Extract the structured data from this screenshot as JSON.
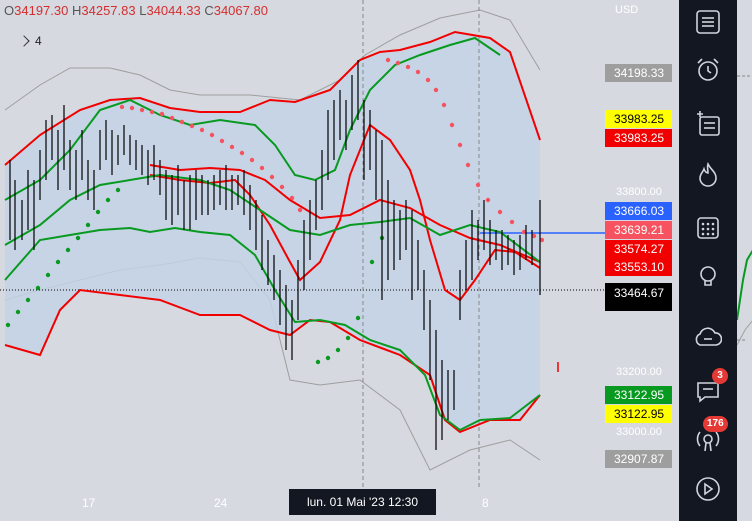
{
  "ohlc": {
    "o_key": "O",
    "o": "34197.30",
    "h_key": "H",
    "h": "34257.83",
    "l_key": "L",
    "l": "34044.33",
    "c_key": "C",
    "c": "34067.80"
  },
  "indicator_legend": {
    "count": "4"
  },
  "price_axis": {
    "currency": "USD",
    "ticks": [
      "33800.00",
      "33200.00",
      "33000.00"
    ],
    "tags": [
      {
        "value": "34198.33",
        "bg": "#9e9e9e",
        "fg": "#ffffff"
      },
      {
        "value": "33983.25",
        "bg": "#ffff00",
        "fg": "#000000"
      },
      {
        "value": "33983.25",
        "bg": "#f20000",
        "fg": "#ffffff"
      },
      {
        "value": "33666.03",
        "bg": "#2962ff",
        "fg": "#ffffff"
      },
      {
        "value": "33639.21",
        "bg": "#f7525f",
        "fg": "#ffffff"
      },
      {
        "value": "33574.27",
        "bg": "#f20000",
        "fg": "#ffffff"
      },
      {
        "value": "33553.10",
        "bg": "#f20000",
        "fg": "#ffffff"
      },
      {
        "value": "33464.67",
        "bg": "#000000",
        "fg": "#ffffff"
      },
      {
        "value": "33122.95",
        "bg": "#089a20",
        "fg": "#ffffff"
      },
      {
        "value": "33122.95",
        "bg": "#ffff00",
        "fg": "#000000"
      },
      {
        "value": "32907.87",
        "bg": "#9e9e9e",
        "fg": "#ffffff"
      }
    ]
  },
  "time_axis": {
    "labels": [
      "17",
      "24",
      "8"
    ],
    "crosshair": "lun. 01 Mai '23    12:30"
  },
  "toolbar": {
    "items": [
      {
        "icon": "watchlist-icon"
      },
      {
        "icon": "alarm-clock-icon"
      },
      {
        "icon": "add-list-icon"
      },
      {
        "icon": "hotlist-fire-icon"
      },
      {
        "icon": "calendar-icon"
      },
      {
        "icon": "ideas-lightbulb-icon"
      },
      {
        "icon": "chat-cloud-icon"
      },
      {
        "icon": "messages-icon",
        "badge": "3"
      },
      {
        "icon": "notifications-icon",
        "badge": "176"
      },
      {
        "icon": "live-stream-icon"
      }
    ]
  },
  "colors": {
    "band_fill": "#c3d2e5",
    "red": "#f20000",
    "green": "#089a20",
    "outer": "#9e9e9e",
    "blue": "#2962ff"
  }
}
